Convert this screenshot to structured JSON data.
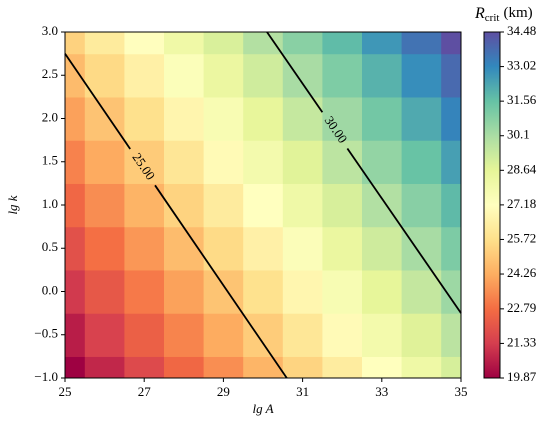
{
  "chart_data": {
    "type": "heatmap",
    "xlabel": "lg A",
    "ylabel": "lg k",
    "colorbar_label": {
      "symbol": "R",
      "subscript": "crit",
      "unit": "(km)"
    },
    "x": [
      25,
      26,
      27,
      28,
      29,
      30,
      31,
      32,
      33,
      34,
      35
    ],
    "y": [
      -1,
      -0.5,
      0,
      0.5,
      1,
      1.5,
      2,
      2.5,
      3
    ],
    "z": [
      [
        19.87,
        20.79,
        21.7,
        22.62,
        23.53,
        24.45,
        25.37,
        26.28,
        27.2,
        28.11,
        29.03
      ],
      [
        20.55,
        21.47,
        22.38,
        23.3,
        24.21,
        25.13,
        26.05,
        26.96,
        27.88,
        28.79,
        29.71
      ],
      [
        21.23,
        22.15,
        23.06,
        23.98,
        24.89,
        25.81,
        26.73,
        27.64,
        28.56,
        29.47,
        30.39
      ],
      [
        21.91,
        22.83,
        23.74,
        24.66,
        25.57,
        26.49,
        27.41,
        28.32,
        29.24,
        30.15,
        31.07
      ],
      [
        22.59,
        23.51,
        24.42,
        25.34,
        26.25,
        27.17,
        28.09,
        29.0,
        29.92,
        30.83,
        31.75
      ],
      [
        23.27,
        24.19,
        25.1,
        26.02,
        26.93,
        27.85,
        28.77,
        29.68,
        30.6,
        31.51,
        32.43
      ],
      [
        23.95,
        24.87,
        25.78,
        26.7,
        27.61,
        28.53,
        29.45,
        30.36,
        31.28,
        32.19,
        33.11
      ],
      [
        24.63,
        25.55,
        26.46,
        27.38,
        28.29,
        29.21,
        30.13,
        31.04,
        31.96,
        32.87,
        33.79
      ],
      [
        25.31,
        26.23,
        27.14,
        28.06,
        28.97,
        29.89,
        30.81,
        31.72,
        32.64,
        33.55,
        34.47
      ]
    ],
    "contours": [
      {
        "level": 25,
        "label": "25.00",
        "x": [
          25,
          30.6
        ],
        "y": [
          2.75,
          -1
        ]
      },
      {
        "level": 30,
        "label": "30.00",
        "x": [
          30.1,
          35
        ],
        "y": [
          3,
          -0.25
        ]
      }
    ],
    "xlim": [
      25,
      35
    ],
    "xticks": [
      25,
      27,
      29,
      31,
      33,
      35
    ],
    "ylim": [
      -1,
      3
    ],
    "yticks": [
      {
        "value": -1,
        "label": "−1.0"
      },
      {
        "value": -0.5,
        "label": "−0.5"
      },
      {
        "value": 0,
        "label": "0.0"
      },
      0.5,
      {
        "value": 1,
        "label": "1.0"
      },
      1.5,
      {
        "value": 2,
        "label": "2.0"
      },
      2.5,
      {
        "value": 3,
        "label": "3.0"
      }
    ],
    "clim": [
      19.87,
      34.48
    ],
    "cticks": [
      19.87,
      21.33,
      22.79,
      24.26,
      25.72,
      27.18,
      28.64,
      30.1,
      31.56,
      33.02,
      34.48
    ],
    "colormap": [
      "#9e0142",
      "#d53e4f",
      "#f46d43",
      "#fdae61",
      "#fee08b",
      "#ffffbf",
      "#e6f598",
      "#abdda4",
      "#66c2a5",
      "#3288bd",
      "#5e4fa2"
    ]
  }
}
